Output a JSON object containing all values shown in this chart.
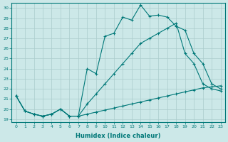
{
  "xlabel": "Humidex (Indice chaleur)",
  "ylabel": "",
  "background_color": "#cce8e8",
  "grid_color": "#aacccc",
  "line_color": "#007878",
  "xlim": [
    -0.5,
    23.5
  ],
  "ylim": [
    18.7,
    30.5
  ],
  "yticks": [
    19,
    20,
    21,
    22,
    23,
    24,
    25,
    26,
    27,
    28,
    29,
    30
  ],
  "xticks": [
    0,
    1,
    2,
    3,
    4,
    5,
    6,
    7,
    8,
    9,
    10,
    11,
    12,
    13,
    14,
    15,
    16,
    17,
    18,
    19,
    20,
    21,
    22,
    23
  ],
  "line1_x": [
    0,
    1,
    2,
    3,
    4,
    5,
    6,
    7,
    8,
    9,
    10,
    11,
    12,
    13,
    14,
    15,
    16,
    17,
    18,
    19,
    20,
    21,
    22,
    23
  ],
  "line1_y": [
    21.3,
    19.8,
    19.5,
    19.3,
    19.5,
    20.0,
    19.3,
    19.3,
    24.0,
    23.5,
    27.2,
    27.5,
    29.1,
    28.8,
    30.3,
    29.2,
    29.3,
    29.1,
    28.2,
    27.8,
    25.5,
    24.5,
    22.5,
    22.0
  ],
  "line2_x": [
    0,
    1,
    2,
    3,
    4,
    5,
    6,
    7,
    8,
    9,
    10,
    11,
    12,
    13,
    14,
    15,
    16,
    17,
    18,
    19,
    20,
    21,
    22,
    23
  ],
  "line2_y": [
    21.3,
    19.8,
    19.5,
    19.3,
    19.5,
    20.0,
    19.3,
    19.3,
    20.5,
    21.5,
    22.5,
    23.5,
    24.5,
    25.5,
    26.5,
    27.0,
    27.5,
    28.0,
    28.5,
    25.5,
    24.5,
    22.5,
    22.0,
    21.8
  ],
  "line3_x": [
    0,
    1,
    2,
    3,
    4,
    5,
    6,
    7,
    8,
    9,
    10,
    11,
    12,
    13,
    14,
    15,
    16,
    17,
    18,
    19,
    20,
    21,
    22,
    23
  ],
  "line3_y": [
    21.3,
    19.8,
    19.5,
    19.3,
    19.5,
    20.0,
    19.3,
    19.3,
    19.5,
    19.7,
    19.9,
    20.1,
    20.3,
    20.5,
    20.7,
    20.9,
    21.1,
    21.3,
    21.5,
    21.7,
    21.9,
    22.1,
    22.2,
    22.3
  ]
}
